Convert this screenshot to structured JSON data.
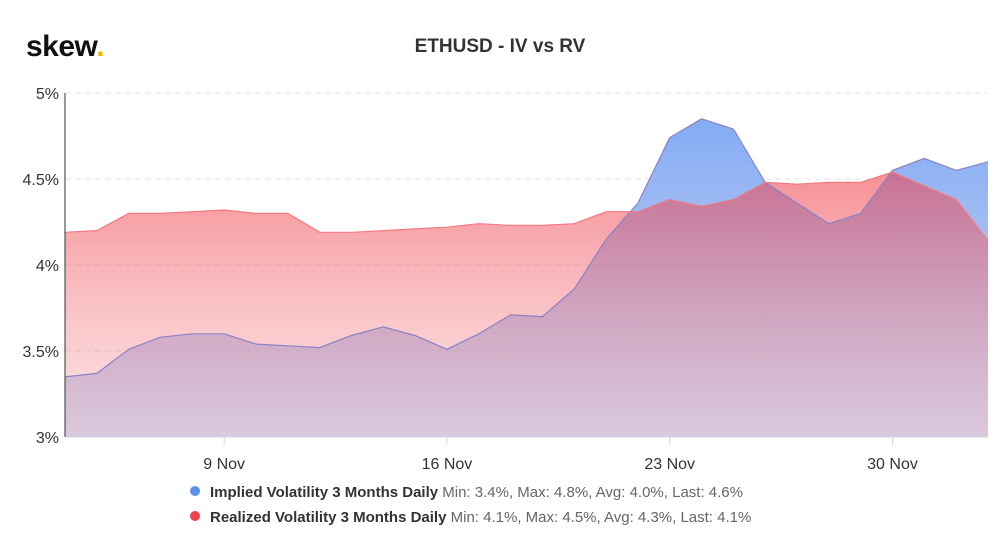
{
  "logo": {
    "text": "skew",
    "dot": "."
  },
  "chart_data": {
    "type": "area",
    "title": "ETHUSD - IV vs RV",
    "xlabel": "",
    "ylabel": "",
    "ylim": [
      3,
      5
    ],
    "y_ticks": [
      "3%",
      "3.5%",
      "4%",
      "4.5%",
      "5%"
    ],
    "y_tick_values": [
      3,
      3.5,
      4,
      4.5,
      5
    ],
    "x_ticks": [
      "9 Nov",
      "16 Nov",
      "23 Nov",
      "30 Nov"
    ],
    "x_tick_days": [
      9,
      16,
      23,
      30
    ],
    "x": [
      4,
      5,
      6,
      7,
      8,
      9,
      10,
      11,
      12,
      13,
      14,
      15,
      16,
      17,
      18,
      19,
      20,
      21,
      22,
      23,
      24,
      25,
      26,
      27,
      28,
      29,
      30,
      31,
      32,
      33
    ],
    "grid": true,
    "legend_position": "bottom",
    "series": [
      {
        "name": "Implied Volatility 3 Months Daily",
        "stats": "Min: 3.4%, Max: 4.8%, Avg: 4.0%, Last: 4.6%",
        "color": "#5b8ff0",
        "values": [
          3.35,
          3.37,
          3.51,
          3.58,
          3.6,
          3.6,
          3.54,
          3.53,
          3.52,
          3.59,
          3.64,
          3.59,
          3.51,
          3.6,
          3.71,
          3.7,
          3.86,
          4.15,
          4.36,
          4.74,
          4.85,
          4.79,
          4.48,
          4.36,
          4.24,
          4.3,
          4.55,
          4.62,
          4.55,
          4.6
        ]
      },
      {
        "name": "Realized Volatility 3 Months Daily",
        "stats": "Min: 4.1%, Max: 4.5%, Avg: 4.3%, Last: 4.1%",
        "color": "#f0404a",
        "values": [
          4.19,
          4.2,
          4.3,
          4.3,
          4.31,
          4.32,
          4.3,
          4.3,
          4.19,
          4.19,
          4.2,
          4.21,
          4.22,
          4.24,
          4.23,
          4.23,
          4.24,
          4.31,
          4.31,
          4.38,
          4.34,
          4.38,
          4.48,
          4.47,
          4.48,
          4.48,
          4.54,
          4.46,
          4.38,
          4.14
        ]
      }
    ]
  }
}
